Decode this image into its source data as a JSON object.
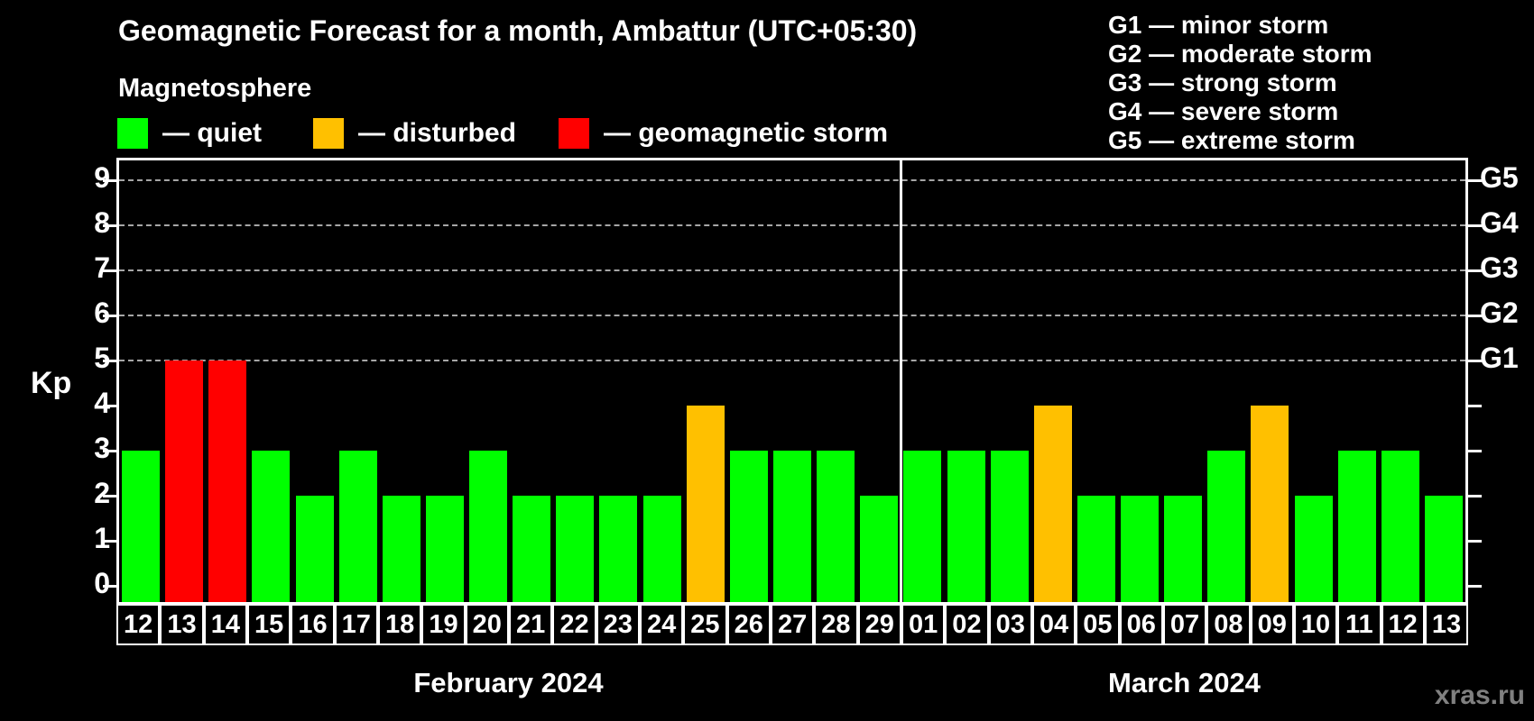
{
  "header": {
    "title": "Geomagnetic Forecast for a month, Ambattur (UTC+05:30)",
    "subtitle": "Magnetosphere"
  },
  "legend": {
    "items": [
      {
        "name": "quiet",
        "label": "— quiet",
        "color": "#00ff00"
      },
      {
        "name": "disturbed",
        "label": "— disturbed",
        "color": "#ffc000"
      },
      {
        "name": "storm",
        "label": "— geomagnetic storm",
        "color": "#ff0000"
      }
    ]
  },
  "g_legend": {
    "items": [
      "G1 — minor storm",
      "G2 — moderate storm",
      "G3 — strong storm",
      "G4 — severe storm",
      "G5 — extreme storm"
    ]
  },
  "axes": {
    "y_label": "Kp",
    "y_ticks": [
      0,
      1,
      2,
      3,
      4,
      5,
      6,
      7,
      8,
      9
    ],
    "gridline_kps": [
      5,
      6,
      7,
      8,
      9
    ],
    "right_labels": [
      {
        "kp": 5,
        "label": "G1"
      },
      {
        "kp": 6,
        "label": "G2"
      },
      {
        "kp": 7,
        "label": "G3"
      },
      {
        "kp": 8,
        "label": "G4"
      },
      {
        "kp": 9,
        "label": "G5"
      }
    ]
  },
  "status_colors": {
    "quiet": "#00ff00",
    "disturbed": "#ffc000",
    "storm": "#ff0000"
  },
  "months": [
    {
      "caption": "February 2024",
      "days": [
        {
          "label": "12",
          "kp": 3,
          "status": "quiet"
        },
        {
          "label": "13",
          "kp": 5,
          "status": "storm"
        },
        {
          "label": "14",
          "kp": 5,
          "status": "storm"
        },
        {
          "label": "15",
          "kp": 3,
          "status": "quiet"
        },
        {
          "label": "16",
          "kp": 2,
          "status": "quiet"
        },
        {
          "label": "17",
          "kp": 3,
          "status": "quiet"
        },
        {
          "label": "18",
          "kp": 2,
          "status": "quiet"
        },
        {
          "label": "19",
          "kp": 2,
          "status": "quiet"
        },
        {
          "label": "20",
          "kp": 3,
          "status": "quiet"
        },
        {
          "label": "21",
          "kp": 2,
          "status": "quiet"
        },
        {
          "label": "22",
          "kp": 2,
          "status": "quiet"
        },
        {
          "label": "23",
          "kp": 2,
          "status": "quiet"
        },
        {
          "label": "24",
          "kp": 2,
          "status": "quiet"
        },
        {
          "label": "25",
          "kp": 4,
          "status": "disturbed"
        },
        {
          "label": "26",
          "kp": 3,
          "status": "quiet"
        },
        {
          "label": "27",
          "kp": 3,
          "status": "quiet"
        },
        {
          "label": "28",
          "kp": 3,
          "status": "quiet"
        },
        {
          "label": "29",
          "kp": 2,
          "status": "quiet"
        }
      ]
    },
    {
      "caption": "March 2024",
      "days": [
        {
          "label": "01",
          "kp": 3,
          "status": "quiet"
        },
        {
          "label": "02",
          "kp": 3,
          "status": "quiet"
        },
        {
          "label": "03",
          "kp": 3,
          "status": "quiet"
        },
        {
          "label": "04",
          "kp": 4,
          "status": "disturbed"
        },
        {
          "label": "05",
          "kp": 2,
          "status": "quiet"
        },
        {
          "label": "06",
          "kp": 2,
          "status": "quiet"
        },
        {
          "label": "07",
          "kp": 2,
          "status": "quiet"
        },
        {
          "label": "08",
          "kp": 3,
          "status": "quiet"
        },
        {
          "label": "09",
          "kp": 4,
          "status": "disturbed"
        },
        {
          "label": "10",
          "kp": 2,
          "status": "quiet"
        },
        {
          "label": "11",
          "kp": 3,
          "status": "quiet"
        },
        {
          "label": "12",
          "kp": 3,
          "status": "quiet"
        },
        {
          "label": "13",
          "kp": 2,
          "status": "quiet"
        }
      ]
    }
  ],
  "watermark": "xras.ru",
  "chart_data": {
    "type": "bar",
    "title": "Geomagnetic Forecast for a month, Ambattur (UTC+05:30)",
    "subtitle": "Magnetosphere",
    "ylabel": "Kp",
    "ylim": [
      0,
      9.5
    ],
    "grid": "dashed horizontal gridlines at Kp 5,6,7,8,9 only",
    "legend_position": "top-left (quiet/disturbed/storm), top-right (G1-G5 scale)",
    "right_axis_labels": {
      "5": "G1",
      "6": "G2",
      "7": "G3",
      "8": "G4",
      "9": "G5"
    },
    "color_coding": {
      "quiet": "#00ff00",
      "disturbed": "#ffc000",
      "geomagnetic storm": "#ff0000"
    },
    "x_groups": [
      "February 2024",
      "March 2024"
    ],
    "categories": [
      "Feb 12",
      "Feb 13",
      "Feb 14",
      "Feb 15",
      "Feb 16",
      "Feb 17",
      "Feb 18",
      "Feb 19",
      "Feb 20",
      "Feb 21",
      "Feb 22",
      "Feb 23",
      "Feb 24",
      "Feb 25",
      "Feb 26",
      "Feb 27",
      "Feb 28",
      "Feb 29",
      "Mar 01",
      "Mar 02",
      "Mar 03",
      "Mar 04",
      "Mar 05",
      "Mar 06",
      "Mar 07",
      "Mar 08",
      "Mar 09",
      "Mar 10",
      "Mar 11",
      "Mar 12",
      "Mar 13"
    ],
    "values": [
      3,
      5,
      5,
      3,
      2,
      3,
      2,
      2,
      3,
      2,
      2,
      2,
      2,
      4,
      3,
      3,
      3,
      2,
      3,
      3,
      3,
      4,
      2,
      2,
      2,
      3,
      4,
      2,
      3,
      3,
      2
    ],
    "statuses": [
      "quiet",
      "storm",
      "storm",
      "quiet",
      "quiet",
      "quiet",
      "quiet",
      "quiet",
      "quiet",
      "quiet",
      "quiet",
      "quiet",
      "quiet",
      "disturbed",
      "quiet",
      "quiet",
      "quiet",
      "quiet",
      "quiet",
      "quiet",
      "quiet",
      "disturbed",
      "quiet",
      "quiet",
      "quiet",
      "quiet",
      "disturbed",
      "quiet",
      "quiet",
      "quiet",
      "quiet"
    ]
  }
}
